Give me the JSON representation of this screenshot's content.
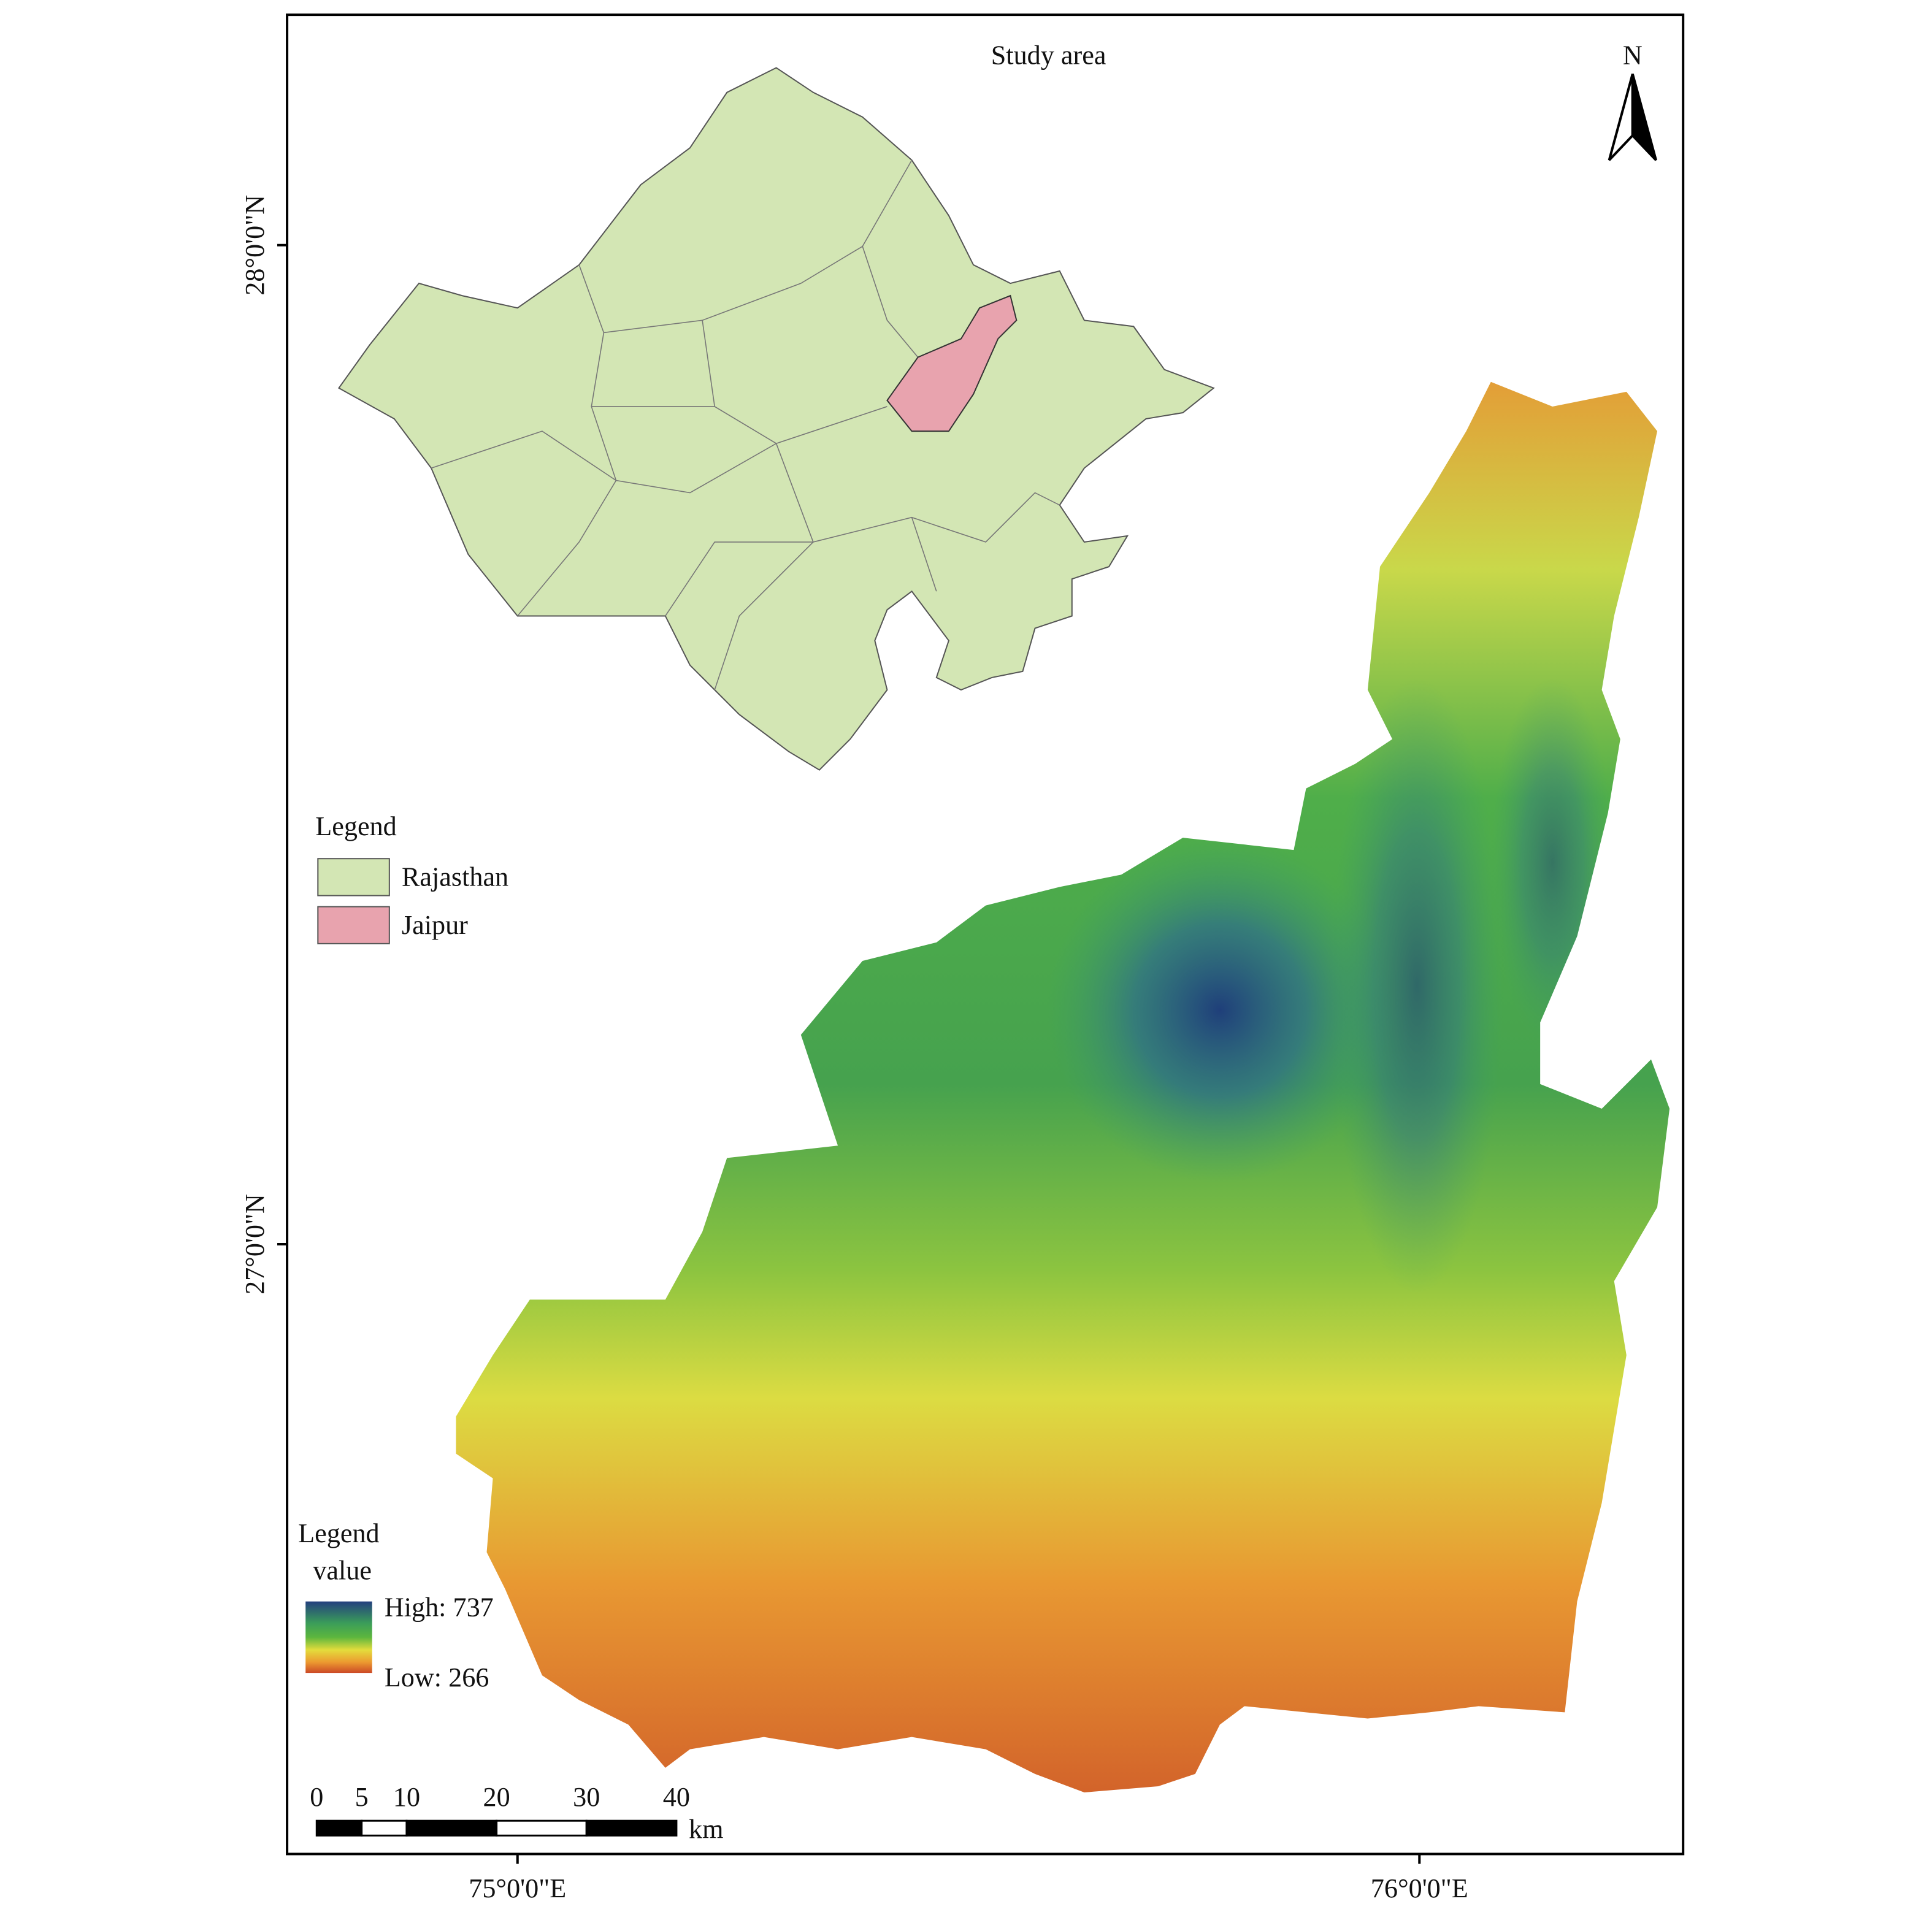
{
  "title": "Study area",
  "north_arrow": "N",
  "graticule": {
    "latitudes": [
      "28°0'0\"N",
      "27°0'0\"N"
    ],
    "longitudes": [
      "75°0'0\"E",
      "76°0'0\"E"
    ]
  },
  "inset_legend": {
    "title": "Legend",
    "items": [
      {
        "label": "Rajasthan",
        "color": "#d3e6b4"
      },
      {
        "label": "Jaipur",
        "color": "#e8a3ae"
      }
    ]
  },
  "elevation_legend": {
    "title": "Legend",
    "subtitle": "value",
    "high": "High: 737",
    "low": "Low: 266"
  },
  "scale_bar": {
    "ticks": [
      0,
      5,
      10,
      20,
      30,
      40
    ],
    "unit": "km"
  }
}
